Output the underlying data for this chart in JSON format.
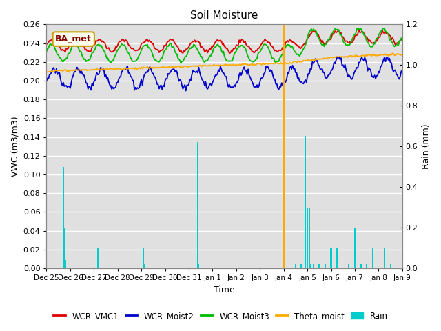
{
  "title": "Soil Moisture",
  "xlabel": "Time",
  "ylabel_left": "VWC (m3/m3)",
  "ylabel_right": "Rain (mm)",
  "annotation_label": "BA_met",
  "annotation_color": "#c8a000",
  "annotation_bg": "#ffffee",
  "ylim_left": [
    0.0,
    0.26
  ],
  "ylim_right": [
    0.0,
    1.2
  ],
  "yticks_left": [
    0.0,
    0.02,
    0.04,
    0.06,
    0.08,
    0.1,
    0.12,
    0.14,
    0.16,
    0.18,
    0.2,
    0.22,
    0.24,
    0.26
  ],
  "yticks_right": [
    0.0,
    0.2,
    0.4,
    0.6,
    0.8,
    1.0,
    1.2
  ],
  "background_color": "#e0e0e0",
  "line_colors": {
    "WCR_VMC1": "#dd0000",
    "WCR_Moist2": "#0000cc",
    "WCR_Moist3": "#00bb00",
    "Theta_moist": "#ffaa00",
    "Rain": "#00cccc"
  },
  "grid_color": "#ffffff",
  "linewidth": 1.3
}
